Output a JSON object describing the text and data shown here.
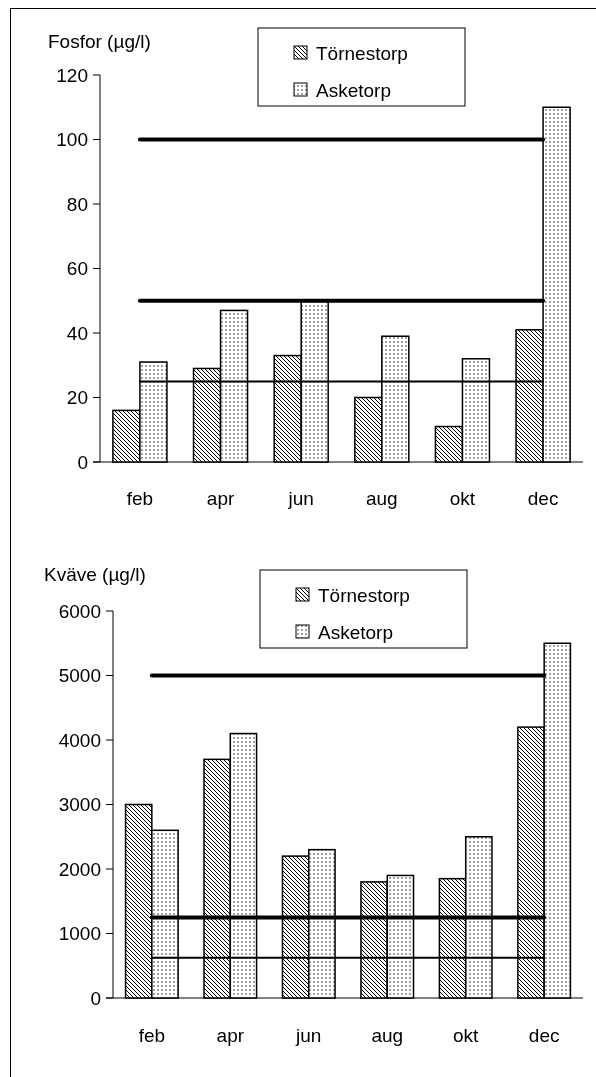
{
  "chart_data": [
    {
      "type": "bar",
      "ylabel": "Fosfor (µg/l)",
      "categories": [
        "feb",
        "apr",
        "jun",
        "aug",
        "okt",
        "dec"
      ],
      "series": [
        {
          "name": "Törnestorp",
          "color": "#000000",
          "values": [
            16,
            29,
            33,
            20,
            11,
            41
          ]
        },
        {
          "name": "Asketorp",
          "color": "#000000",
          "values": [
            31,
            47,
            50,
            39,
            32,
            110
          ]
        }
      ],
      "ylim": [
        0,
        120
      ],
      "yticks": [
        0,
        20,
        40,
        60,
        80,
        100,
        120
      ],
      "legend": "top",
      "ref_lines": [
        {
          "axis": "y",
          "value": 100,
          "label": null
        },
        {
          "axis": "y",
          "value": 50,
          "label": null
        },
        {
          "axis": "y",
          "value": 25,
          "label": null
        }
      ]
    },
    {
      "type": "bar",
      "ylabel": "Kväve (µg/l)",
      "categories": [
        "feb",
        "apr",
        "jun",
        "aug",
        "okt",
        "dec"
      ],
      "series": [
        {
          "name": "Törnestorp",
          "color": "#000000",
          "values": [
            3000,
            3700,
            2200,
            1800,
            1850,
            4200
          ]
        },
        {
          "name": "Asketorp",
          "color": "#000000",
          "values": [
            2600,
            4100,
            2300,
            1900,
            2500,
            5500
          ]
        }
      ],
      "ylim": [
        0,
        6000
      ],
      "yticks": [
        0,
        1000,
        2000,
        3000,
        4000,
        5000,
        6000
      ],
      "legend": "top",
      "ref_lines": [
        {
          "axis": "y",
          "value": 5000,
          "label": null
        },
        {
          "axis": "y",
          "value": 1250,
          "label": null
        },
        {
          "axis": "y",
          "value": 625,
          "label": null
        }
      ]
    }
  ]
}
